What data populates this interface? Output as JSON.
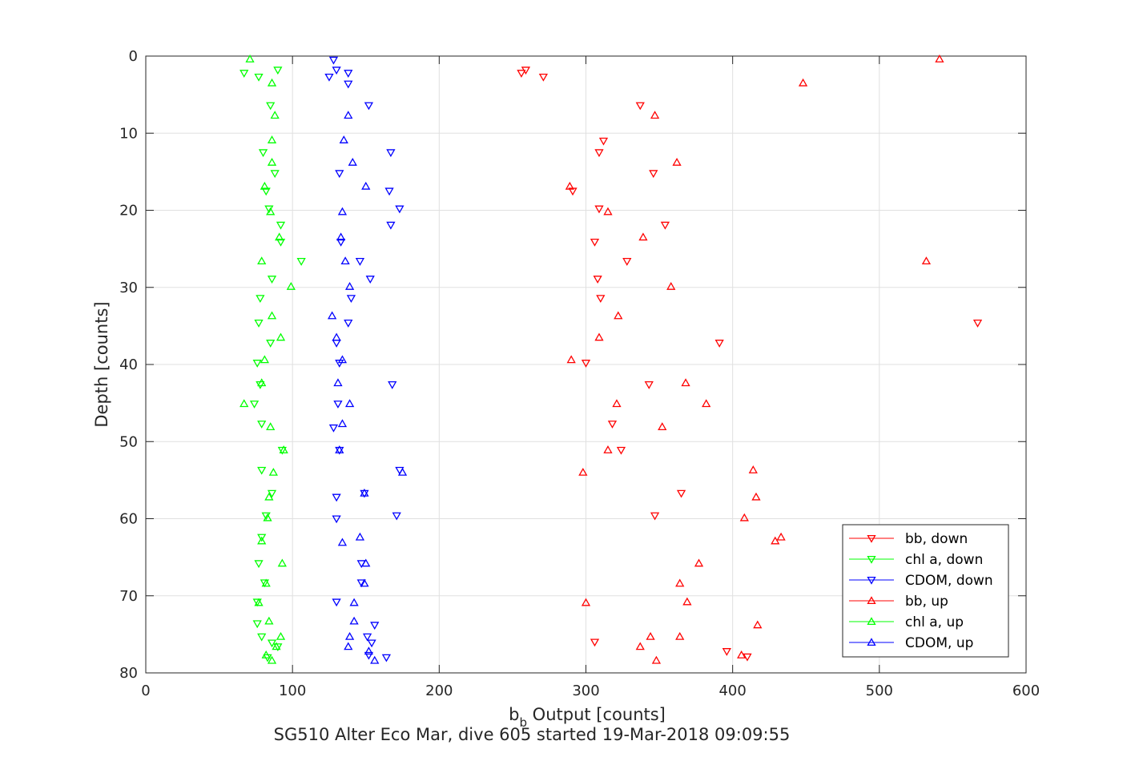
{
  "chart_data": {
    "type": "scatter",
    "title": "SG510 Alter Eco Mar, dive 605 started 19-Mar-2018 09:09:55",
    "xlabel_main": "b",
    "xlabel_sub": "b",
    "xlabel_rest": " Output [counts]",
    "ylabel": "Depth [counts]",
    "xlim": [
      0,
      600
    ],
    "ylim": [
      0,
      80
    ],
    "y_reversed": true,
    "grid": true,
    "xticks": [
      0,
      100,
      200,
      300,
      400,
      500,
      600
    ],
    "yticks": [
      0,
      10,
      20,
      30,
      40,
      50,
      60,
      70,
      80
    ],
    "legend_position": "bottom-right",
    "series": [
      {
        "name": "bb, down",
        "color": "#ff0000",
        "marker": "triangle-down",
        "points": [
          [
            256,
            2.2
          ],
          [
            259,
            1.8
          ],
          [
            271,
            2.7
          ],
          [
            337,
            6.4
          ],
          [
            312,
            11
          ],
          [
            309,
            12.5
          ],
          [
            346,
            15.2
          ],
          [
            291,
            17.5
          ],
          [
            309,
            19.8
          ],
          [
            354,
            21.9
          ],
          [
            306,
            24.1
          ],
          [
            328,
            26.6
          ],
          [
            308,
            28.9
          ],
          [
            310,
            31.4
          ],
          [
            567,
            34.6
          ],
          [
            391,
            37.2
          ],
          [
            300,
            39.8
          ],
          [
            343,
            42.6
          ],
          [
            318,
            47.7
          ],
          [
            324,
            51.1
          ],
          [
            365,
            56.7
          ],
          [
            347,
            59.6
          ],
          [
            306,
            76
          ],
          [
            396,
            77.2
          ],
          [
            410,
            77.9
          ]
        ]
      },
      {
        "name": "chl a, down",
        "color": "#00ff00",
        "marker": "triangle-down",
        "points": [
          [
            67,
            2.2
          ],
          [
            90,
            1.8
          ],
          [
            77,
            2.7
          ],
          [
            85,
            6.4
          ],
          [
            80,
            12.5
          ],
          [
            88,
            15.2
          ],
          [
            82,
            17.5
          ],
          [
            84,
            19.8
          ],
          [
            92,
            21.9
          ],
          [
            92,
            24.1
          ],
          [
            106,
            26.6
          ],
          [
            86,
            28.9
          ],
          [
            78,
            31.4
          ],
          [
            77,
            34.6
          ],
          [
            85,
            37.2
          ],
          [
            76,
            39.8
          ],
          [
            78,
            42.6
          ],
          [
            74,
            45.1
          ],
          [
            79,
            47.7
          ],
          [
            93,
            51.1
          ],
          [
            79,
            53.7
          ],
          [
            86,
            56.7
          ],
          [
            82,
            59.6
          ],
          [
            79,
            62.4
          ],
          [
            77,
            65.8
          ],
          [
            81,
            68.3
          ],
          [
            76,
            70.8
          ],
          [
            76,
            73.6
          ],
          [
            79,
            75.3
          ],
          [
            86,
            76.1
          ],
          [
            90,
            76.6
          ],
          [
            83,
            78
          ]
        ]
      },
      {
        "name": "CDOM, down",
        "color": "#0000ff",
        "marker": "triangle-down",
        "points": [
          [
            128,
            0.5
          ],
          [
            125,
            2.7
          ],
          [
            130,
            1.8
          ],
          [
            138,
            2.2
          ],
          [
            138,
            3.6
          ],
          [
            152,
            6.4
          ],
          [
            167,
            12.5
          ],
          [
            132,
            15.2
          ],
          [
            166,
            17.5
          ],
          [
            173,
            19.8
          ],
          [
            167,
            21.9
          ],
          [
            133,
            24.1
          ],
          [
            146,
            26.6
          ],
          [
            153,
            28.9
          ],
          [
            140,
            31.4
          ],
          [
            138,
            34.6
          ],
          [
            130,
            37.2
          ],
          [
            132,
            39.8
          ],
          [
            168,
            42.6
          ],
          [
            131,
            45.1
          ],
          [
            128,
            48.2
          ],
          [
            132,
            51.1
          ],
          [
            173,
            53.7
          ],
          [
            130,
            57.2
          ],
          [
            149,
            56.7
          ],
          [
            171,
            59.6
          ],
          [
            130,
            60
          ],
          [
            147,
            65.8
          ],
          [
            147,
            68.3
          ],
          [
            130,
            70.8
          ],
          [
            156,
            73.8
          ],
          [
            151,
            75.3
          ],
          [
            154,
            76.1
          ],
          [
            152,
            77.7
          ],
          [
            164,
            78
          ]
        ]
      },
      {
        "name": "bb, up",
        "color": "#ff0000",
        "marker": "triangle-up",
        "points": [
          [
            541,
            0.4
          ],
          [
            448,
            3.5
          ],
          [
            347,
            7.7
          ],
          [
            362,
            13.8
          ],
          [
            289,
            16.9
          ],
          [
            315,
            20.2
          ],
          [
            339,
            23.5
          ],
          [
            532,
            26.6
          ],
          [
            358,
            29.9
          ],
          [
            322,
            33.7
          ],
          [
            309,
            36.5
          ],
          [
            290,
            39.4
          ],
          [
            368,
            42.4
          ],
          [
            382,
            45.1
          ],
          [
            321,
            45.1
          ],
          [
            352,
            48.1
          ],
          [
            315,
            51.1
          ],
          [
            298,
            54
          ],
          [
            414,
            53.7
          ],
          [
            416,
            57.2
          ],
          [
            408,
            59.9
          ],
          [
            433,
            62.4
          ],
          [
            429,
            62.9
          ],
          [
            377,
            65.8
          ],
          [
            364,
            68.4
          ],
          [
            300,
            70.9
          ],
          [
            369,
            70.8
          ],
          [
            417,
            73.8
          ],
          [
            344,
            75.3
          ],
          [
            364,
            75.3
          ],
          [
            337,
            76.6
          ],
          [
            406,
            77.7
          ],
          [
            348,
            78.4
          ]
        ]
      },
      {
        "name": "chl a, up",
        "color": "#00ff00",
        "marker": "triangle-up",
        "points": [
          [
            71,
            0.4
          ],
          [
            86,
            3.5
          ],
          [
            88,
            7.7
          ],
          [
            86,
            10.9
          ],
          [
            86,
            13.8
          ],
          [
            81,
            16.9
          ],
          [
            85,
            20.2
          ],
          [
            91,
            23.5
          ],
          [
            79,
            26.6
          ],
          [
            99,
            29.9
          ],
          [
            86,
            33.7
          ],
          [
            92,
            36.5
          ],
          [
            81,
            39.4
          ],
          [
            79,
            42.4
          ],
          [
            67,
            45.1
          ],
          [
            85,
            48.1
          ],
          [
            94,
            51.1
          ],
          [
            87,
            54
          ],
          [
            84,
            57.2
          ],
          [
            83,
            59.9
          ],
          [
            79,
            62.9
          ],
          [
            93,
            65.8
          ],
          [
            82,
            68.4
          ],
          [
            77,
            70.9
          ],
          [
            84,
            73.3
          ],
          [
            92,
            75.3
          ],
          [
            89,
            76.6
          ],
          [
            82,
            77.7
          ],
          [
            86,
            78.4
          ]
        ]
      },
      {
        "name": "CDOM, up",
        "color": "#0000ff",
        "marker": "triangle-up",
        "points": [
          [
            138,
            7.7
          ],
          [
            135,
            10.9
          ],
          [
            141,
            13.8
          ],
          [
            150,
            16.9
          ],
          [
            134,
            20.2
          ],
          [
            133,
            23.5
          ],
          [
            136,
            26.6
          ],
          [
            139,
            29.9
          ],
          [
            127,
            33.7
          ],
          [
            130,
            36.5
          ],
          [
            134,
            39.4
          ],
          [
            131,
            42.4
          ],
          [
            139,
            45.1
          ],
          [
            134,
            47.7
          ],
          [
            132,
            51.1
          ],
          [
            175,
            54
          ],
          [
            149,
            56.7
          ],
          [
            146,
            62.4
          ],
          [
            134,
            63.1
          ],
          [
            150,
            65.8
          ],
          [
            149,
            68.4
          ],
          [
            142,
            70.9
          ],
          [
            142,
            73.3
          ],
          [
            139,
            75.3
          ],
          [
            138,
            76.6
          ],
          [
            152,
            77.2
          ],
          [
            156,
            78.4
          ]
        ]
      }
    ]
  }
}
